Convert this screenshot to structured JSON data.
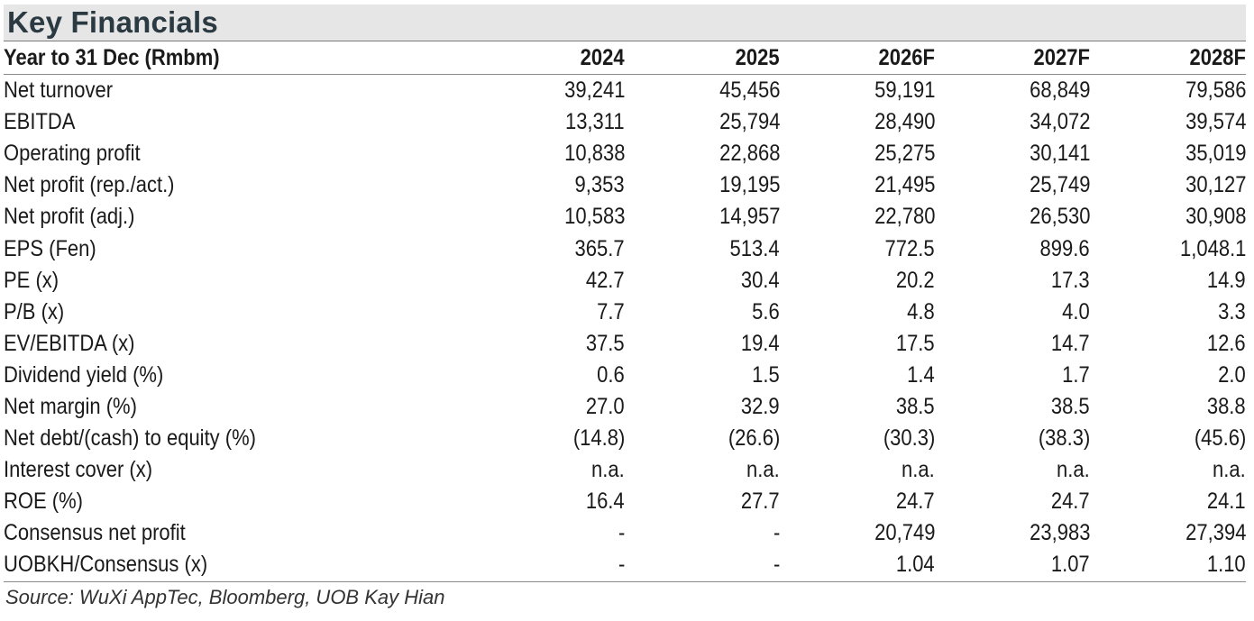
{
  "title": "Key Financials",
  "header": {
    "label": "Year to 31 Dec (Rmbm)",
    "years": [
      "2024",
      "2025",
      "2026F",
      "2027F",
      "2028F"
    ]
  },
  "rows": [
    {
      "label": "Net turnover",
      "values": [
        "39,241",
        "45,456",
        "59,191",
        "68,849",
        "79,586"
      ]
    },
    {
      "label": "EBITDA",
      "values": [
        "13,311",
        "25,794",
        "28,490",
        "34,072",
        "39,574"
      ]
    },
    {
      "label": "Operating profit",
      "values": [
        "10,838",
        "22,868",
        "25,275",
        "30,141",
        "35,019"
      ]
    },
    {
      "label": "Net profit (rep./act.)",
      "values": [
        "9,353",
        "19,195",
        "21,495",
        "25,749",
        "30,127"
      ]
    },
    {
      "label": "Net profit (adj.)",
      "values": [
        "10,583",
        "14,957",
        "22,780",
        "26,530",
        "30,908"
      ]
    },
    {
      "label": "EPS (Fen)",
      "values": [
        "365.7",
        "513.4",
        "772.5",
        "899.6",
        "1,048.1"
      ]
    },
    {
      "label": "PE (x)",
      "values": [
        "42.7",
        "30.4",
        "20.2",
        "17.3",
        "14.9"
      ]
    },
    {
      "label": "P/B (x)",
      "values": [
        "7.7",
        "5.6",
        "4.8",
        "4.0",
        "3.3"
      ]
    },
    {
      "label": "EV/EBITDA (x)",
      "values": [
        "37.5",
        "19.4",
        "17.5",
        "14.7",
        "12.6"
      ]
    },
    {
      "label": "Dividend yield (%)",
      "values": [
        "0.6",
        "1.5",
        "1.4",
        "1.7",
        "2.0"
      ]
    },
    {
      "label": "Net margin (%)",
      "values": [
        "27.0",
        "32.9",
        "38.5",
        "38.5",
        "38.8"
      ]
    },
    {
      "label": "Net debt/(cash) to equity (%)",
      "values": [
        "(14.8)",
        "(26.6)",
        "(30.3)",
        "(38.3)",
        "(45.6)"
      ]
    },
    {
      "label": "Interest cover (x)",
      "values": [
        "n.a.",
        "n.a.",
        "n.a.",
        "n.a.",
        "n.a."
      ]
    },
    {
      "label": "ROE (%)",
      "values": [
        "16.4",
        "27.7",
        "24.7",
        "24.7",
        "24.1"
      ]
    },
    {
      "label": "Consensus net profit",
      "values": [
        "-",
        "-",
        "20,749",
        "23,983",
        "27,394"
      ]
    },
    {
      "label": "UOBKH/Consensus (x)",
      "values": [
        "-",
        "-",
        "1.04",
        "1.07",
        "1.10"
      ]
    }
  ],
  "source": "Source: WuXi AppTec, Bloomberg, UOB Kay Hian"
}
